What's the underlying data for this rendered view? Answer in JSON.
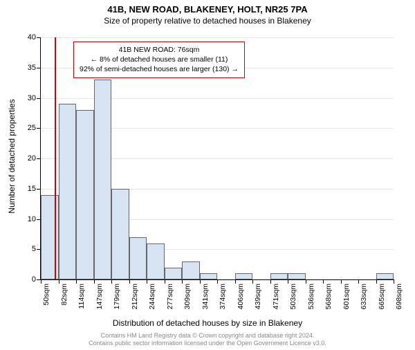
{
  "title": "41B, NEW ROAD, BLAKENEY, HOLT, NR25 7PA",
  "subtitle": "Size of property relative to detached houses in Blakeney",
  "y_axis_title": "Number of detached properties",
  "x_axis_title": "Distribution of detached houses by size in Blakeney",
  "chart": {
    "type": "histogram",
    "ylim": [
      0,
      40
    ],
    "ytick_step": 5,
    "bar_fill": "#d6e3f3",
    "bar_border": "#666666",
    "grid_color": "#e6e6e6",
    "background_color": "#ffffff",
    "ref_line_color": "#cc0000",
    "infobox_border": "#cc0000",
    "label_fontsize": 11,
    "title_fontsize": 13,
    "x_bins": [
      "50sqm",
      "82sqm",
      "114sqm",
      "147sqm",
      "179sqm",
      "212sqm",
      "244sqm",
      "277sqm",
      "309sqm",
      "341sqm",
      "374sqm",
      "406sqm",
      "439sqm",
      "471sqm",
      "503sqm",
      "536sqm",
      "568sqm",
      "601sqm",
      "633sqm",
      "665sqm",
      "698sqm"
    ],
    "counts": [
      14,
      29,
      28,
      33,
      15,
      7,
      6,
      2,
      3,
      1,
      0,
      1,
      0,
      1,
      1,
      0,
      0,
      0,
      0,
      1
    ],
    "ref_value_sqm": 76,
    "x_range": [
      50,
      698
    ]
  },
  "infobox": {
    "line1": "41B NEW ROAD: 76sqm",
    "line2": "← 8% of detached houses are smaller (11)",
    "line3": "92% of semi-detached houses are larger (130) →"
  },
  "attribution": {
    "line1": "Contains HM Land Registry data © Crown copyright and database right 2024.",
    "line2": "Contains public sector information licensed under the Open Government Licence v3.0."
  }
}
